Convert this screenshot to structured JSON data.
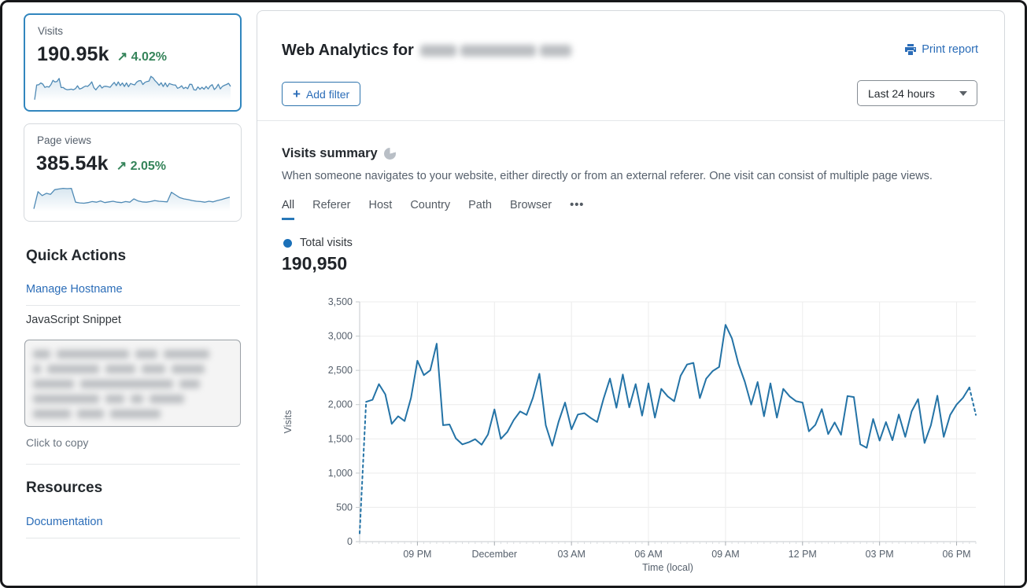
{
  "colors": {
    "accent_blue": "#2b6db8",
    "chart_line": "#2473a6",
    "legend_dot": "#1b70b8",
    "green_up": "#35845a",
    "selected_card_border": "#3186be"
  },
  "sidebar": {
    "metric_cards": [
      {
        "label": "Visits",
        "value": "190.95k",
        "arrow": "↗",
        "change": "4.02%",
        "selected": true
      },
      {
        "label": "Page views",
        "value": "385.54k",
        "arrow": "↗",
        "change": "2.05%",
        "selected": false
      }
    ],
    "pageviews_sparkline": [
      8,
      60,
      48,
      55,
      52,
      66,
      68,
      70,
      69,
      70,
      28,
      26,
      25,
      27,
      30,
      28,
      32,
      27,
      29,
      31,
      28,
      27,
      30,
      28,
      38,
      32,
      29,
      28,
      30,
      33,
      31,
      30,
      29,
      58,
      50,
      42,
      38,
      36,
      33,
      31,
      30,
      28,
      31,
      29,
      33,
      36,
      40,
      43
    ],
    "quick_actions": {
      "title": "Quick Actions",
      "manage_hostname": "Manage Hostname",
      "snippet_label": "JavaScript Snippet",
      "copy_hint": "Click to copy"
    },
    "resources": {
      "title": "Resources",
      "documentation": "Documentation"
    }
  },
  "header": {
    "title_prefix": "Web Analytics for",
    "print_report": "Print report",
    "add_filter": "Add filter",
    "time_range": "Last 24 hours"
  },
  "summary": {
    "title": "Visits summary",
    "description": "When someone navigates to your website, either directly or from an external referer. One visit can consist of multiple page views.",
    "tabs": [
      "All",
      "Referer",
      "Host",
      "Country",
      "Path",
      "Browser"
    ],
    "more_tab": "•••",
    "active_tab": "All",
    "legend_label": "Total visits",
    "total_value": "190,950"
  },
  "chart_data": {
    "type": "line",
    "series_name": "Total visits",
    "xlabel": "Time (local)",
    "ylabel": "Visits",
    "ylim": [
      0,
      3500
    ],
    "y_ticks": [
      0,
      500,
      1000,
      1500,
      2000,
      2500,
      3000,
      3500
    ],
    "y_tick_labels": [
      "0",
      "500",
      "1,000",
      "1,500",
      "2,000",
      "2,500",
      "3,000",
      "3,500"
    ],
    "x_tick_labels": [
      "09 PM",
      "December",
      "03 AM",
      "06 AM",
      "09 AM",
      "12 PM",
      "03 PM",
      "06 PM"
    ],
    "x_tick_indices": [
      9,
      21,
      33,
      45,
      57,
      69,
      81,
      93
    ],
    "grid": true,
    "dashed_segments": [
      [
        0,
        1
      ],
      [
        95,
        96
      ]
    ],
    "values": [
      120,
      2040,
      2070,
      2300,
      2150,
      1720,
      1830,
      1760,
      2100,
      2640,
      2430,
      2500,
      2890,
      1700,
      1710,
      1505,
      1420,
      1450,
      1495,
      1415,
      1565,
      1930,
      1500,
      1600,
      1775,
      1900,
      1850,
      2100,
      2450,
      1700,
      1400,
      1750,
      2030,
      1640,
      1855,
      1875,
      1805,
      1745,
      2085,
      2380,
      1955,
      2440,
      1960,
      2300,
      1840,
      2310,
      1810,
      2230,
      2120,
      2050,
      2420,
      2585,
      2610,
      2095,
      2380,
      2490,
      2550,
      3165,
      2965,
      2600,
      2335,
      2000,
      2330,
      1830,
      2310,
      1810,
      2230,
      2120,
      2050,
      2030,
      1610,
      1705,
      1935,
      1570,
      1740,
      1560,
      2125,
      2110,
      1420,
      1370,
      1790,
      1475,
      1745,
      1480,
      1855,
      1530,
      1900,
      2080,
      1440,
      1700,
      2130,
      1530,
      1850,
      2000,
      2100,
      2250,
      1850
    ]
  }
}
